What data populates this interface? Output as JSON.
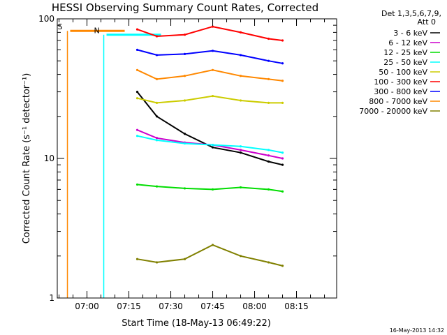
{
  "chart_data": {
    "type": "line",
    "title": "HESSI Observing Summary Count Rates, Corrected",
    "xlabel": "Start Time (18-May-13 06:49:22)",
    "ylabel": "Corrected Count Rate (s⁻¹ detector⁻¹)",
    "timestamp": "16-May-2013 14:32",
    "xlim": [
      "06:49:22",
      "08:29:22"
    ],
    "x_ticks": [
      "07:00",
      "07:15",
      "07:30",
      "07:45",
      "08:00",
      "08:15"
    ],
    "ylim": [
      1,
      100
    ],
    "y_scale": "log",
    "y_ticks": [
      "1",
      "10",
      "100"
    ],
    "grid": false,
    "legend_position": "outside-right",
    "legend_header": [
      "Det 1,3,5,6,7,9,",
      "Att 0"
    ],
    "series": [
      {
        "name": "3 - 6 keV",
        "color": "#000000",
        "t": [
          "07:18",
          "07:25",
          "07:35",
          "07:45",
          "07:55",
          "08:05",
          "08:10"
        ],
        "values": [
          30,
          20,
          15,
          12,
          11,
          9.5,
          9
        ]
      },
      {
        "name": "6 - 12 keV",
        "color": "#cc00cc",
        "t": [
          "07:18",
          "07:25",
          "07:35",
          "07:45",
          "07:55",
          "08:05",
          "08:10"
        ],
        "values": [
          16,
          14,
          13,
          12.5,
          11.5,
          10.5,
          10
        ]
      },
      {
        "name": "12 - 25 keV",
        "color": "#00dd00",
        "t": [
          "07:18",
          "07:25",
          "07:35",
          "07:45",
          "07:55",
          "08:05",
          "08:10"
        ],
        "values": [
          6.5,
          6.3,
          6.1,
          6,
          6.2,
          6,
          5.8
        ]
      },
      {
        "name": "25 - 50 keV",
        "color": "#00ffff",
        "t": [
          "07:18",
          "07:25",
          "07:35",
          "07:45",
          "07:55",
          "08:05",
          "08:10"
        ],
        "values": [
          14.5,
          13.5,
          12.8,
          12.5,
          12.2,
          11.5,
          11
        ]
      },
      {
        "name": "50 - 100 keV",
        "color": "#cccc00",
        "t": [
          "07:18",
          "07:25",
          "07:35",
          "07:45",
          "07:55",
          "08:05",
          "08:10"
        ],
        "values": [
          27,
          25,
          26,
          28,
          26,
          25,
          25
        ]
      },
      {
        "name": "100 - 300 keV",
        "color": "#ff0000",
        "t": [
          "07:18",
          "07:25",
          "07:35",
          "07:45",
          "07:55",
          "08:05",
          "08:10"
        ],
        "values": [
          84,
          75,
          77,
          88,
          80,
          72,
          70
        ]
      },
      {
        "name": "300 - 800 keV",
        "color": "#0000ff",
        "t": [
          "07:18",
          "07:25",
          "07:35",
          "07:45",
          "07:55",
          "08:05",
          "08:10"
        ],
        "values": [
          60,
          55,
          56,
          59,
          55,
          50,
          48
        ]
      },
      {
        "name": "800 - 7000 keV",
        "color": "#ff8800",
        "t": [
          "07:18",
          "07:25",
          "07:35",
          "07:45",
          "07:55",
          "08:05",
          "08:10"
        ],
        "values": [
          43,
          37,
          39,
          43,
          39,
          37,
          36
        ]
      },
      {
        "name": "7000 - 20000 keV",
        "color": "#808000",
        "t": [
          "07:18",
          "07:25",
          "07:35",
          "07:45",
          "07:55",
          "08:05",
          "08:10"
        ],
        "values": [
          1.9,
          1.8,
          1.9,
          2.4,
          2.0,
          1.8,
          1.7
        ]
      }
    ],
    "markers": [
      {
        "label": "S",
        "color": "#ff8800",
        "t": "06:53",
        "level": 82
      },
      {
        "label": "N",
        "color": "#00ffff",
        "t": "07:06",
        "level": 77
      }
    ]
  }
}
